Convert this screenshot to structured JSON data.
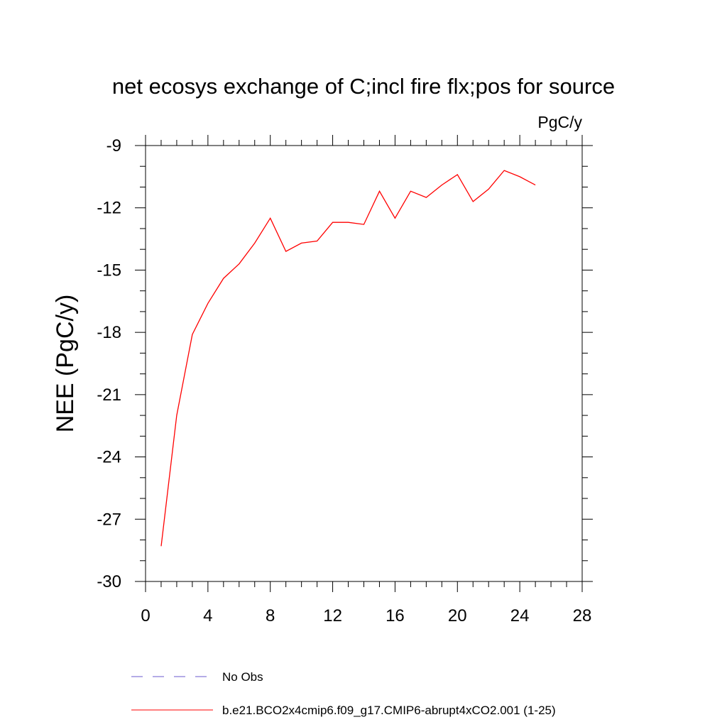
{
  "chart_data": {
    "type": "line",
    "title": "net ecosys exchange of C;incl fire flx;pos for source",
    "units": "PgC/y",
    "xlabel": "",
    "ylabel": "NEE  (PgC/y)",
    "xlim": [
      0,
      28
    ],
    "ylim": [
      -30,
      -9
    ],
    "xticks": [
      0,
      4,
      8,
      12,
      16,
      20,
      24,
      28
    ],
    "yticks": [
      -9,
      -12,
      -15,
      -18,
      -21,
      -24,
      -27,
      -30
    ],
    "grid": false,
    "legend_position": "bottom",
    "series": [
      {
        "name": "No Obs",
        "color": "#6a5acd",
        "style": "dashed",
        "x": [],
        "y": []
      },
      {
        "name": "b.e21.BCO2x4cmip6.f09_g17.CMIP6-abrupt4xCO2.001 (1-25)",
        "color": "#ff0000",
        "style": "solid",
        "x": [
          1,
          2,
          3,
          4,
          5,
          6,
          7,
          8,
          9,
          10,
          11,
          12,
          13,
          14,
          15,
          16,
          17,
          18,
          19,
          20,
          21,
          22,
          23,
          24,
          25
        ],
        "y": [
          -28.3,
          -22.0,
          -18.1,
          -16.6,
          -15.4,
          -14.7,
          -13.7,
          -12.5,
          -14.1,
          -13.7,
          -13.6,
          -12.7,
          -12.7,
          -12.8,
          -11.2,
          -12.5,
          -11.2,
          -11.5,
          -10.9,
          -10.4,
          -11.7,
          -11.1,
          -10.2,
          -10.5,
          -10.9
        ]
      }
    ]
  }
}
